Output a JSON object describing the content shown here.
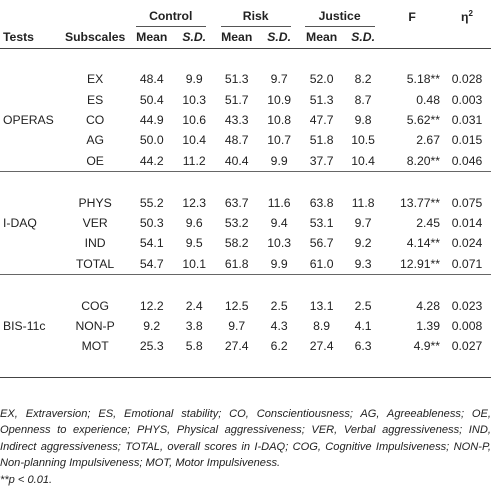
{
  "headers": {
    "groups": [
      "Control",
      "Risk",
      "Justice"
    ],
    "f": "F",
    "eta": "η",
    "eta_sup": "2",
    "tests": "Tests",
    "subscales": "Subscales",
    "mean": "Mean",
    "sd": "S.D."
  },
  "sections": [
    {
      "test": "OPERAS",
      "rows": [
        {
          "sub": "EX",
          "cm": "48.4",
          "csd": "9.9",
          "rm": "51.3",
          "rsd": "9.7",
          "jm": "52.0",
          "jsd": "8.2",
          "f": "5.18**",
          "eta": "0.028"
        },
        {
          "sub": "ES",
          "cm": "50.4",
          "csd": "10.3",
          "rm": "51.7",
          "rsd": "10.9",
          "jm": "51.3",
          "jsd": "8.7",
          "f": "0.48",
          "eta": "0.003"
        },
        {
          "sub": "CO",
          "cm": "44.9",
          "csd": "10.6",
          "rm": "43.3",
          "rsd": "10.8",
          "jm": "47.7",
          "jsd": "9.8",
          "f": "5.62**",
          "eta": "0.031"
        },
        {
          "sub": "AG",
          "cm": "50.0",
          "csd": "10.4",
          "rm": "48.7",
          "rsd": "10.7",
          "jm": "51.8",
          "jsd": "10.5",
          "f": "2.67",
          "eta": "0.015"
        },
        {
          "sub": "OE",
          "cm": "44.2",
          "csd": "11.2",
          "rm": "40.4",
          "rsd": "9.9",
          "jm": "37.7",
          "jsd": "10.4",
          "f": "8.20**",
          "eta": "0.046"
        }
      ]
    },
    {
      "test": "I-DAQ",
      "rows": [
        {
          "sub": "PHYS",
          "cm": "55.2",
          "csd": "12.3",
          "rm": "63.7",
          "rsd": "11.6",
          "jm": "63.8",
          "jsd": "11.8",
          "f": "13.77**",
          "eta": "0.075"
        },
        {
          "sub": "VER",
          "cm": "50.3",
          "csd": "9.6",
          "rm": "53.2",
          "rsd": "9.4",
          "jm": "53.1",
          "jsd": "9.7",
          "f": "2.45",
          "eta": "0.014"
        },
        {
          "sub": "IND",
          "cm": "54.1",
          "csd": "9.5",
          "rm": "58.2",
          "rsd": "10.3",
          "jm": "56.7",
          "jsd": "9.2",
          "f": "4.14**",
          "eta": "0.024"
        },
        {
          "sub": "TOTAL",
          "cm": "54.7",
          "csd": "10.1",
          "rm": "61.8",
          "rsd": "9.9",
          "jm": "61.0",
          "jsd": "9.3",
          "f": "12.91**",
          "eta": "0.071"
        }
      ]
    },
    {
      "test": "BIS-11c",
      "rows": [
        {
          "sub": "COG",
          "cm": "12.2",
          "csd": "2.4",
          "rm": "12.5",
          "rsd": "2.5",
          "jm": "13.1",
          "jsd": "2.5",
          "f": "4.28",
          "eta": "0.023"
        },
        {
          "sub": "NON-P",
          "cm": "9.2",
          "csd": "3.8",
          "rm": "9.7",
          "rsd": "4.3",
          "jm": "8.9",
          "jsd": "4.1",
          "f": "1.39",
          "eta": "0.008"
        },
        {
          "sub": "MOT",
          "cm": "25.3",
          "csd": "5.8",
          "rm": "27.4",
          "rsd": "6.2",
          "jm": "27.4",
          "jsd": "6.3",
          "f": "4.9**",
          "eta": "0.027"
        }
      ]
    }
  ],
  "footnote": "EX, Extraversion; ES, Emotional stability; CO, Conscientiousness; AG, Agreeableness; OE, Openness to experience; PHYS, Physical aggressiveness; VER, Verbal aggressiveness; IND, Indirect aggressiveness; TOTAL, overall scores in I-DAQ; COG, Cognitive Impulsiveness; NON-P, Non-planning Impulsiveness; MOT, Motor Impulsiveness.",
  "footnote_sig": "**p < 0.01."
}
